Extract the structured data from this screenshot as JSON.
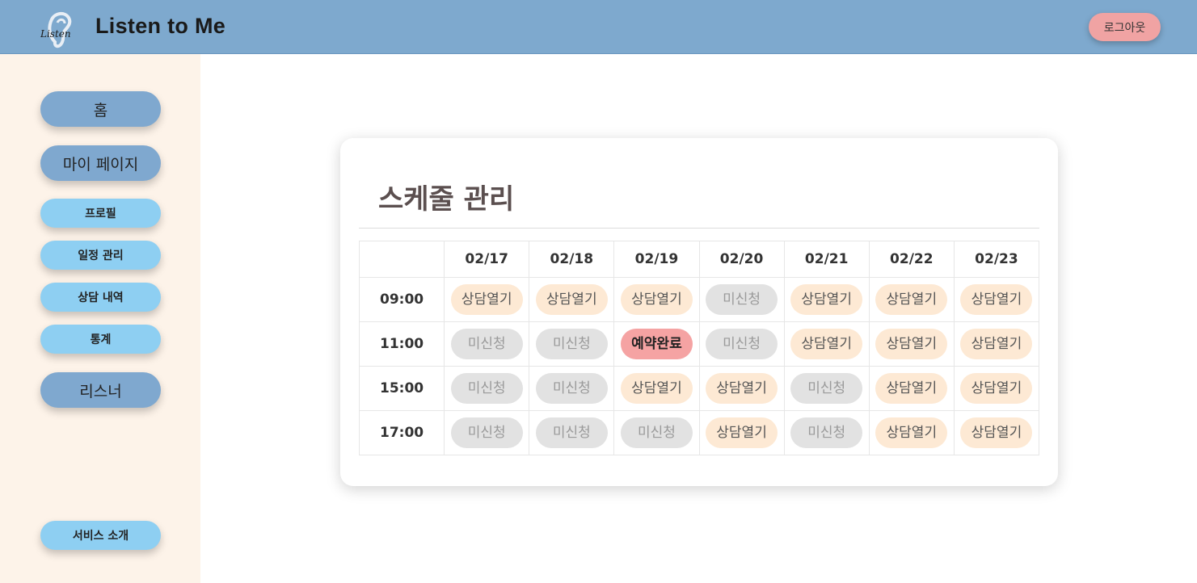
{
  "header": {
    "logo_text": "Listen",
    "title": "Listen to Me",
    "logout_label": "로그아웃"
  },
  "sidebar": {
    "items": [
      {
        "label": "홈",
        "kind": "main"
      },
      {
        "label": "마이 페이지",
        "kind": "main"
      },
      {
        "label": "프로필",
        "kind": "sub"
      },
      {
        "label": "일정 관리",
        "kind": "sub"
      },
      {
        "label": "상담 내역",
        "kind": "sub"
      },
      {
        "label": "통계",
        "kind": "sub"
      },
      {
        "label": "리스너",
        "kind": "main"
      }
    ],
    "footer_label": "서비스 소개"
  },
  "schedule": {
    "title": "스케줄 관리",
    "dates": [
      "02/17",
      "02/18",
      "02/19",
      "02/20",
      "02/21",
      "02/22",
      "02/23"
    ],
    "status_labels": {
      "open": "상담열기",
      "none": "미신청",
      "booked": "예약완료"
    },
    "rows": [
      {
        "time": "09:00",
        "slots": [
          "open",
          "open",
          "open",
          "none",
          "open",
          "open",
          "open"
        ]
      },
      {
        "time": "11:00",
        "slots": [
          "none",
          "none",
          "booked",
          "none",
          "open",
          "open",
          "open"
        ]
      },
      {
        "time": "15:00",
        "slots": [
          "none",
          "none",
          "open",
          "open",
          "none",
          "open",
          "open"
        ]
      },
      {
        "time": "17:00",
        "slots": [
          "none",
          "none",
          "none",
          "open",
          "none",
          "open",
          "open"
        ]
      }
    ]
  },
  "colors": {
    "header_bg": "#7ea9ce",
    "sidebar_bg": "#fdf3e9",
    "nav_main": "#7fa8cf",
    "nav_sub": "#8ecff2",
    "logout_bg": "#f0a3a3",
    "slot_open": "#fde9d4",
    "slot_none": "#e2e2e2",
    "slot_booked": "#f5a3a3"
  }
}
